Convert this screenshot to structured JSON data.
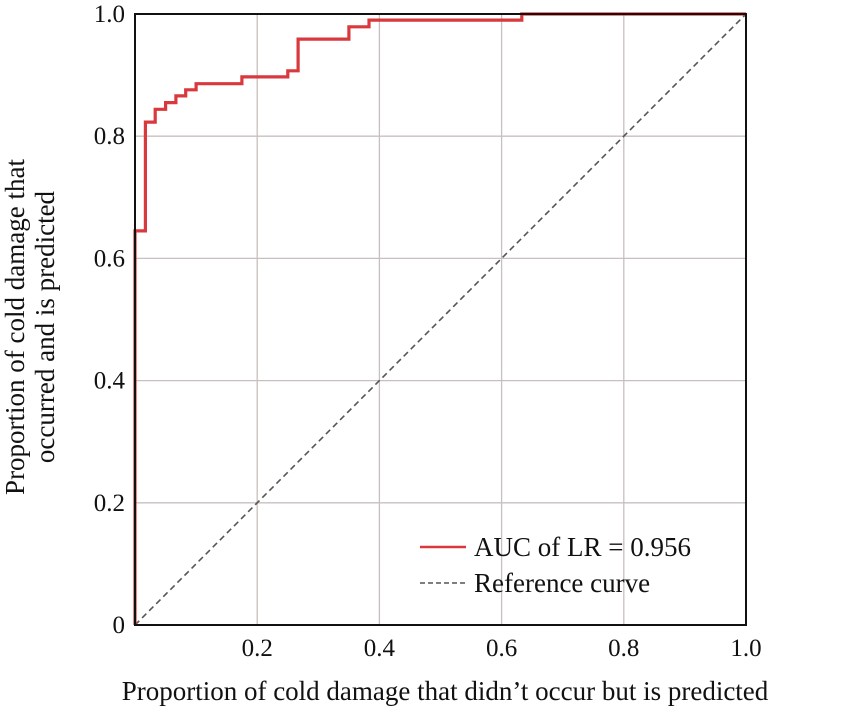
{
  "chart_data": {
    "type": "line",
    "title": "",
    "xlabel": "Proportion of cold damage that didn’t occur but is predicted",
    "ylabel_lines": [
      "Proportion of cold damage that",
      "occurred and is predicted"
    ],
    "xlim": [
      0,
      1
    ],
    "ylim": [
      0,
      1
    ],
    "xticks": [
      0.2,
      0.4,
      0.6,
      0.8,
      1.0
    ],
    "xtick_labels": [
      "0.2",
      "0.4",
      "0.6",
      "0.8",
      "1.0"
    ],
    "yticks": [
      0,
      0.2,
      0.4,
      0.6,
      0.8,
      1.0
    ],
    "ytick_labels": [
      "0",
      "0.2",
      "0.4",
      "0.6",
      "0.8",
      "1.0"
    ],
    "grid": true,
    "legend_position": "bottom-right",
    "series": [
      {
        "name": "AUC of LR = 0.956",
        "color": "#d9393c",
        "style": "solid-step",
        "points": [
          [
            0.0,
            0.0
          ],
          [
            0.0,
            0.645
          ],
          [
            0.017,
            0.645
          ],
          [
            0.017,
            0.823
          ],
          [
            0.033,
            0.823
          ],
          [
            0.033,
            0.844
          ],
          [
            0.05,
            0.844
          ],
          [
            0.05,
            0.855
          ],
          [
            0.067,
            0.855
          ],
          [
            0.067,
            0.866
          ],
          [
            0.083,
            0.866
          ],
          [
            0.083,
            0.876
          ],
          [
            0.1,
            0.876
          ],
          [
            0.1,
            0.886
          ],
          [
            0.175,
            0.886
          ],
          [
            0.175,
            0.897
          ],
          [
            0.25,
            0.897
          ],
          [
            0.25,
            0.907
          ],
          [
            0.267,
            0.907
          ],
          [
            0.267,
            0.959
          ],
          [
            0.35,
            0.959
          ],
          [
            0.35,
            0.979
          ],
          [
            0.383,
            0.979
          ],
          [
            0.383,
            0.99
          ],
          [
            0.633,
            0.99
          ],
          [
            0.633,
            1.0
          ],
          [
            1.0,
            1.0
          ]
        ]
      },
      {
        "name": "Reference curve",
        "color": "#555555",
        "style": "dashed",
        "points": [
          [
            0.0,
            0.0
          ],
          [
            1.0,
            1.0
          ]
        ]
      }
    ]
  },
  "colors": {
    "grid": "#c9bfbf",
    "axes": "#111111",
    "roc": "#d9393c",
    "reference": "#555555"
  }
}
